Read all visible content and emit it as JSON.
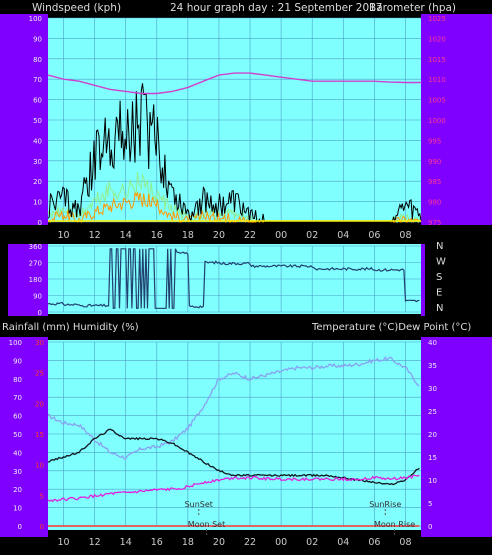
{
  "header": {
    "left": "Windspeed (kph)",
    "center": "24 hour graph day : 21 September 2017",
    "right": "Barometer (hpa)"
  },
  "colors": {
    "plot_bg": "#80ffff",
    "axis_strip": "#8000ff",
    "grid": "#4ca0c8",
    "wind_gust": "#000000",
    "wind_avg": "#90ee90",
    "wind_speed": "#ff9900",
    "barometer": "#d040d0",
    "direction": "#204070",
    "humidity": "#8aa0f0",
    "temperature": "#101820",
    "dewpoint": "#e020e0",
    "rainfall": "#ff3333",
    "pressure_tick": "#ff3399"
  },
  "x_axis": {
    "ticks": [
      "10",
      "12",
      "14",
      "16",
      "18",
      "20",
      "22",
      "00",
      "02",
      "04",
      "06",
      "08"
    ],
    "start_hour": 9
  },
  "chart_data": [
    {
      "type": "line",
      "name": "wind-barometer",
      "ylabel_left": "Windspeed (kph)",
      "ylabel_right": "Barometer (hpa)",
      "ylim_left": [
        0,
        100
      ],
      "yticks_left": [
        "0",
        "10",
        "20",
        "30",
        "40",
        "50",
        "60",
        "70",
        "80",
        "90",
        "100"
      ],
      "ylim_right": [
        975,
        1025
      ],
      "yticks_right": [
        "975",
        "980",
        "985",
        "990",
        "995",
        "1000",
        "1005",
        "1010",
        "1015",
        "1020",
        "1025"
      ],
      "grid": true,
      "x_hours_after_start": [
        0,
        1,
        2,
        3,
        4,
        5,
        6,
        7,
        8,
        9,
        10,
        11,
        12,
        13,
        14,
        15,
        16,
        17,
        18,
        19,
        20,
        21,
        22,
        23,
        24
      ],
      "series": [
        {
          "key": "gust",
          "values": [
            8,
            12,
            6,
            30,
            45,
            42,
            52,
            38,
            15,
            5,
            11,
            8,
            10,
            3,
            0,
            0,
            0,
            0,
            0,
            0,
            0,
            0,
            0,
            8,
            3
          ]
        },
        {
          "key": "avg",
          "values": [
            3,
            6,
            3,
            10,
            16,
            15,
            20,
            12,
            6,
            2,
            4,
            3,
            4,
            1,
            0,
            0,
            0,
            0,
            0,
            0,
            0,
            0,
            0,
            2,
            1
          ]
        },
        {
          "key": "speed",
          "values": [
            1,
            4,
            1,
            5,
            8,
            10,
            12,
            8,
            3,
            1,
            3,
            2,
            2,
            0,
            0,
            0,
            0,
            0,
            0,
            0,
            0,
            0,
            0,
            1,
            0
          ]
        },
        {
          "key": "baro",
          "values": [
            1011,
            1010,
            1009.5,
            1008.5,
            1007.5,
            1007,
            1006.5,
            1006.5,
            1007,
            1008,
            1009.5,
            1011,
            1011.5,
            1011.5,
            1011,
            1010.5,
            1010,
            1009.5,
            1009.5,
            1009.5,
            1009.5,
            1009.5,
            1009.3,
            1009.2,
            1009.2
          ]
        }
      ]
    },
    {
      "type": "line",
      "name": "wind-direction",
      "ylim": [
        0,
        360
      ],
      "yticks": [
        "0",
        "90",
        "180",
        "270",
        "360"
      ],
      "compass": [
        "N",
        "W",
        "S",
        "E",
        "N"
      ],
      "grid": true,
      "x_hours_after_start": [
        0,
        1,
        2,
        3,
        4,
        5,
        6,
        7,
        8,
        9,
        10,
        11,
        12,
        13,
        14,
        15,
        16,
        17,
        18,
        19,
        20,
        21,
        22,
        23,
        24
      ],
      "series": [
        {
          "key": "dir",
          "values": [
            45,
            40,
            35,
            35,
            320,
            120,
            320,
            110,
            320,
            30,
            270,
            265,
            265,
            250,
            250,
            250,
            250,
            235,
            235,
            235,
            235,
            230,
            230,
            60,
            60
          ]
        }
      ]
    },
    {
      "type": "line",
      "name": "temp-humidity",
      "ylabel_left": "Rainfall (mm)  Humidity (%)",
      "ylabel_right": "Temperature (°C)Dew Point (°C)",
      "ylim_humidity": [
        0,
        100
      ],
      "yticks_humidity": [
        "0",
        "10",
        "20",
        "30",
        "40",
        "50",
        "60",
        "70",
        "80",
        "90",
        "100"
      ],
      "ylim_rain": [
        0,
        30
      ],
      "yticks_rain": [
        "0",
        "5",
        "10",
        "15",
        "20",
        "25",
        "30"
      ],
      "ylim_temp": [
        0,
        40
      ],
      "yticks_temp": [
        "0",
        "5",
        "10",
        "15",
        "20",
        "25",
        "30",
        "35",
        "40"
      ],
      "grid": true,
      "x_hours_after_start": [
        0,
        1,
        2,
        3,
        4,
        5,
        6,
        7,
        8,
        9,
        10,
        11,
        12,
        13,
        14,
        15,
        16,
        17,
        18,
        19,
        20,
        21,
        22,
        23,
        24
      ],
      "series": [
        {
          "key": "humidity",
          "values": [
            60,
            56,
            55,
            47,
            40,
            37,
            42,
            43,
            46,
            53,
            65,
            80,
            83,
            80,
            82,
            84,
            86,
            86,
            87,
            87,
            88,
            90,
            91,
            86,
            75
          ]
        },
        {
          "key": "temperature",
          "values": [
            14,
            15,
            16,
            19,
            21,
            19,
            19,
            19,
            18,
            16,
            14,
            12,
            11,
            11,
            11,
            11,
            11,
            11,
            11,
            10.5,
            10,
            9.5,
            9,
            10,
            13
          ]
        },
        {
          "key": "dewpoint",
          "values": [
            5.5,
            5.8,
            6,
            6.5,
            7,
            7.2,
            7.5,
            7.8,
            8,
            8.5,
            9.5,
            10,
            10.5,
            10.5,
            10.3,
            10.2,
            10.2,
            10.2,
            10.2,
            10.2,
            10.2,
            10.5,
            10.2,
            10.5,
            11
          ]
        },
        {
          "key": "rainfall",
          "values": [
            0,
            0,
            0,
            0,
            0,
            0,
            0,
            0,
            0,
            0,
            0,
            0,
            0,
            0,
            0,
            0,
            0,
            0,
            0,
            0,
            0,
            0,
            0,
            0,
            0
          ]
        }
      ],
      "annotations": [
        {
          "label": "SunSet",
          "hour_after_start": 9.7
        },
        {
          "label": "Moon Set",
          "hour_after_start": 10.2
        },
        {
          "label": "SunRise",
          "hour_after_start": 21.7
        },
        {
          "label": "Moon Rise",
          "hour_after_start": 22.3
        }
      ]
    }
  ]
}
